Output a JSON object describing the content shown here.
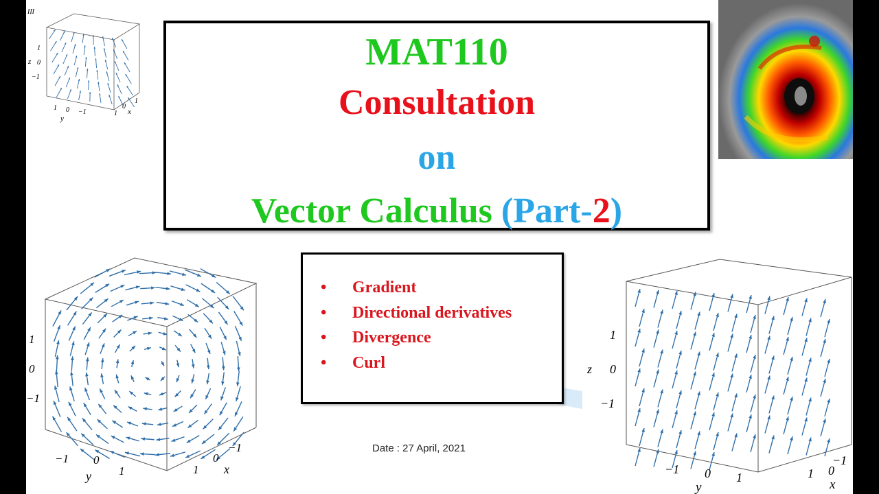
{
  "title": {
    "line1": "MAT110",
    "line2": "Consultation",
    "line3": "on",
    "line4_main": "Vector Calculus ",
    "line4_open": "(",
    "line4_part": "Part-",
    "line4_num": "2",
    "line4_close": ")"
  },
  "topics": {
    "bullet": "•",
    "items": [
      "Gradient",
      "Directional derivatives",
      "Divergence",
      "Curl"
    ]
  },
  "date": "Date : 27 April, 2021",
  "figures": {
    "top_left": {
      "panel_label": "III",
      "z_ticks": [
        "1",
        "0",
        "−1"
      ],
      "y_ticks": [
        "1",
        "0",
        "−1"
      ],
      "x_ticks": [
        "1",
        "0",
        "1"
      ],
      "axis_z": "z",
      "axis_y": "y",
      "axis_x": "x"
    },
    "bottom_left": {
      "z_ticks": [
        "1",
        "0",
        "−1"
      ],
      "y_ticks": [
        "−1",
        "0",
        "1"
      ],
      "x_ticks": [
        "1",
        "0",
        "−1"
      ],
      "axis_y": "y",
      "axis_x": "x"
    },
    "bottom_right": {
      "z_ticks": [
        "1",
        "0",
        "−1"
      ],
      "y_ticks": [
        "−1",
        "0",
        "1"
      ],
      "x_ticks": [
        "1",
        "0",
        "−1"
      ],
      "axis_z": "z",
      "axis_y": "y",
      "axis_x": "x"
    }
  },
  "colors": {
    "green": "#1ec81e",
    "red": "#e8101a",
    "blue": "#2aa5e6",
    "arrow": "#2e6ea8"
  }
}
